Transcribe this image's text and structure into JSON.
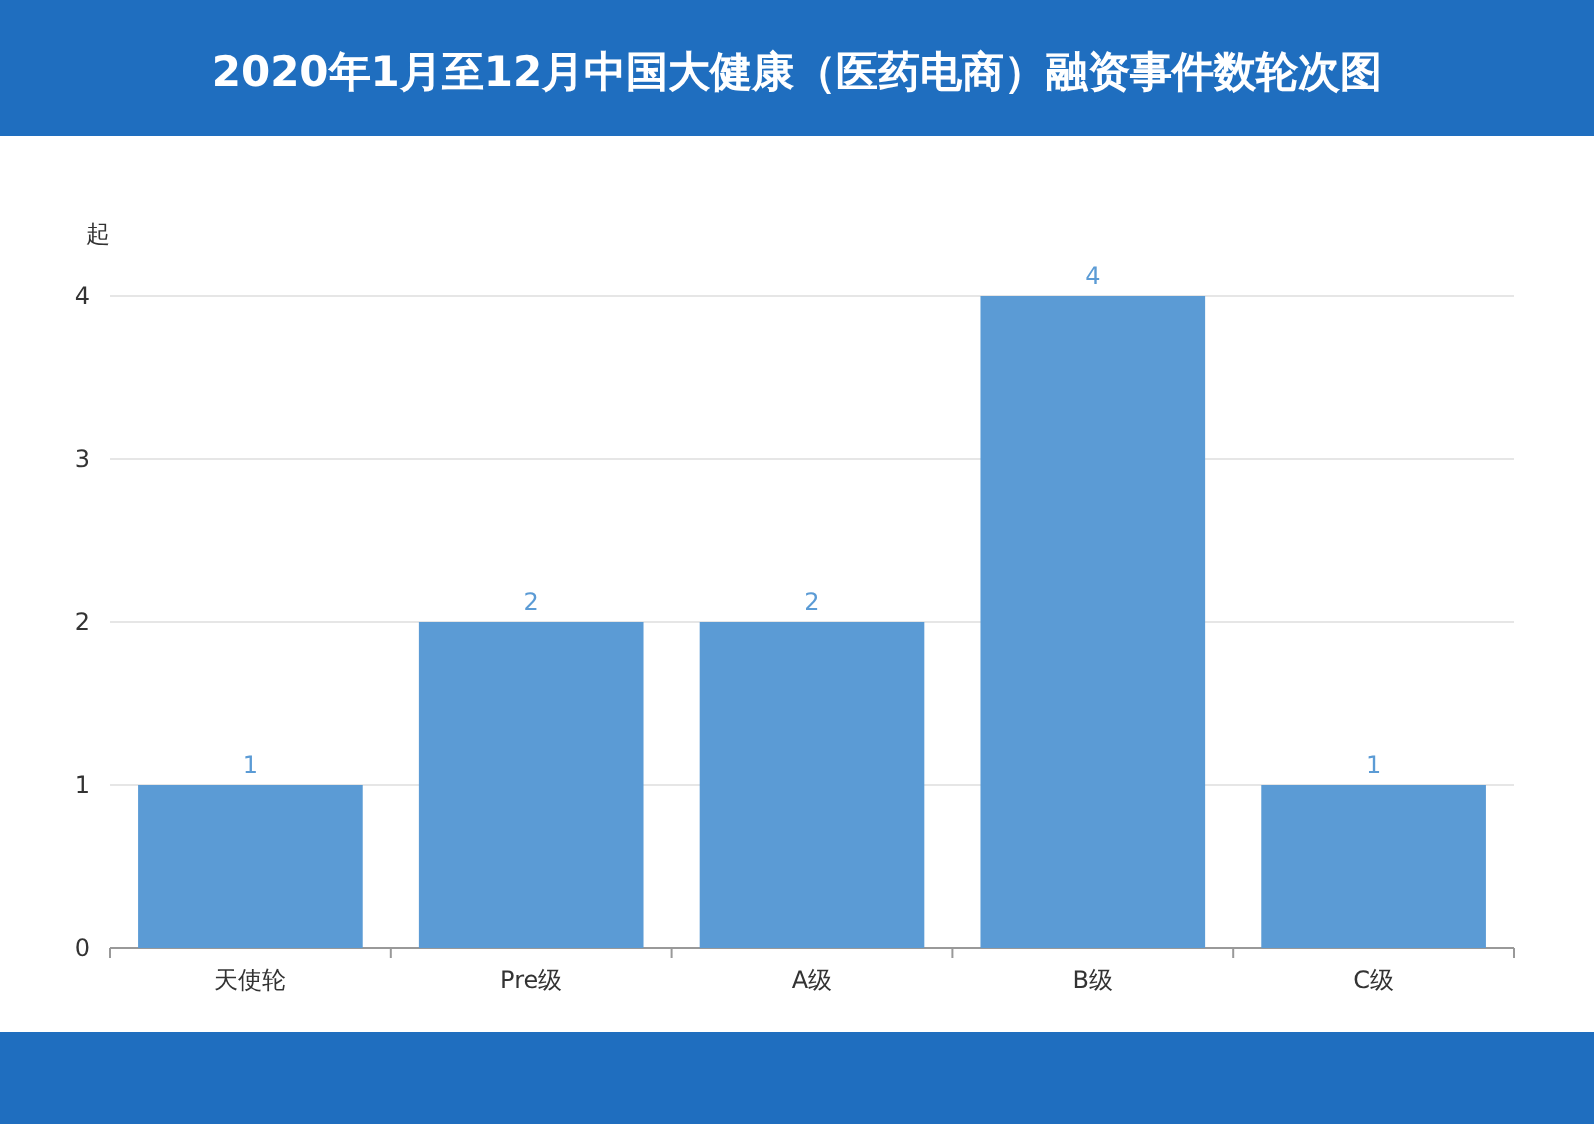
{
  "chart_data": {
    "type": "bar",
    "title": "2020年1月至12月中国大健康（医药电商）融资事件数轮次图",
    "ylabel": "起",
    "categories": [
      "天使轮",
      "Pre级",
      "A级",
      "B级",
      "C级"
    ],
    "values": [
      1,
      2,
      2,
      4,
      1
    ],
    "color": "#5b9bd5",
    "ylim": [
      0,
      4
    ],
    "yticks": [
      0,
      1,
      2,
      3,
      4
    ],
    "grid": "y",
    "data_labels": true
  }
}
